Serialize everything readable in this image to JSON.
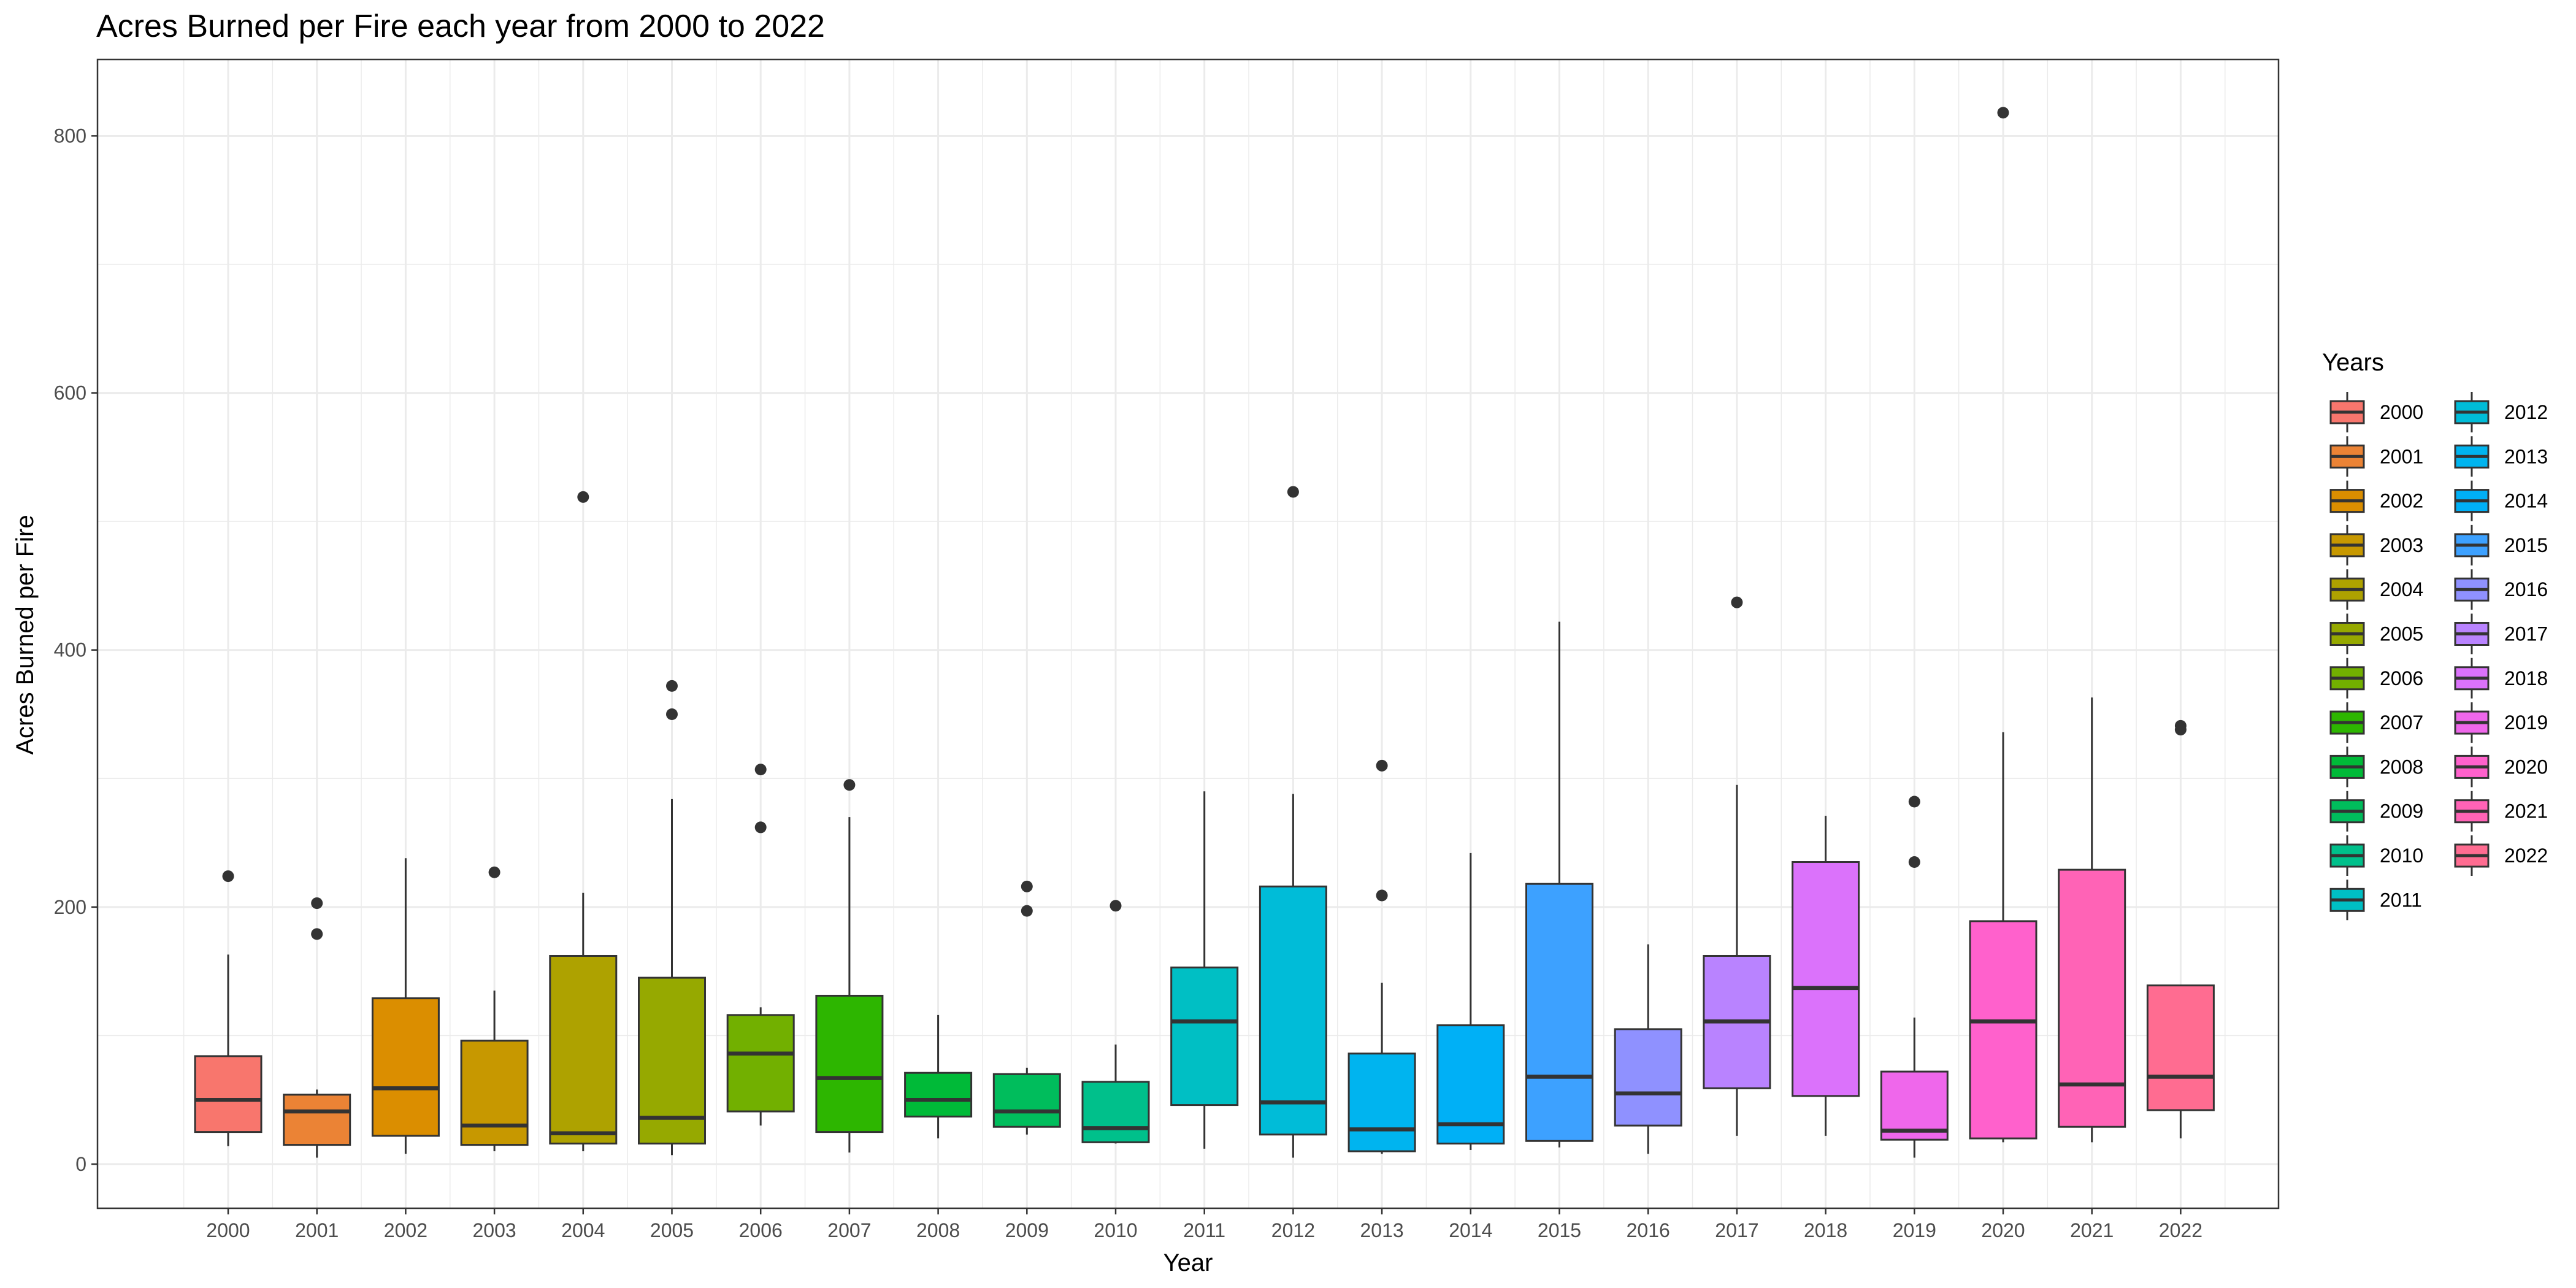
{
  "chart_data": {
    "type": "boxplot",
    "title": "Acres Burned per Fire each year from 2000 to 2022",
    "xlabel": "Year",
    "ylabel": "Acres Burned per Fire",
    "ylim": [
      -32,
      860
    ],
    "yticks": [
      0,
      200,
      400,
      600,
      800
    ],
    "grid": true,
    "legend": {
      "title": "Years",
      "placement": "right",
      "columns": 2
    },
    "categories": [
      "2000",
      "2001",
      "2002",
      "2003",
      "2004",
      "2005",
      "2006",
      "2007",
      "2008",
      "2009",
      "2010",
      "2011",
      "2012",
      "2013",
      "2014",
      "2015",
      "2016",
      "2017",
      "2018",
      "2019",
      "2020",
      "2021",
      "2022"
    ],
    "boxes": [
      {
        "year": "2000",
        "color": "#F8766D",
        "low": 14,
        "q1": 25,
        "median": 50,
        "q3": 84,
        "high": 163,
        "outliers": [
          224
        ]
      },
      {
        "year": "2001",
        "color": "#EB8335",
        "low": 5,
        "q1": 15,
        "median": 41,
        "q3": 54,
        "high": 58,
        "outliers": [
          203,
          179
        ]
      },
      {
        "year": "2002",
        "color": "#DB8E00",
        "low": 8,
        "q1": 22,
        "median": 59,
        "q3": 129,
        "high": 238,
        "outliers": []
      },
      {
        "year": "2003",
        "color": "#C79800",
        "low": 10,
        "q1": 15,
        "median": 30,
        "q3": 96,
        "high": 135,
        "outliers": [
          227
        ]
      },
      {
        "year": "2004",
        "color": "#AEA200",
        "low": 10,
        "q1": 16,
        "median": 24,
        "q3": 162,
        "high": 211,
        "outliers": [
          519
        ]
      },
      {
        "year": "2005",
        "color": "#96A900",
        "low": 7,
        "q1": 16,
        "median": 36,
        "q3": 145,
        "high": 284,
        "outliers": [
          372,
          350
        ]
      },
      {
        "year": "2006",
        "color": "#72B000",
        "low": 30,
        "q1": 41,
        "median": 86,
        "q3": 116,
        "high": 122,
        "outliers": [
          307,
          262
        ]
      },
      {
        "year": "2007",
        "color": "#2DB600",
        "low": 9,
        "q1": 25,
        "median": 67,
        "q3": 131,
        "high": 270,
        "outliers": [
          295
        ]
      },
      {
        "year": "2008",
        "color": "#00BA38",
        "low": 20,
        "q1": 37,
        "median": 50,
        "q3": 71,
        "high": 116,
        "outliers": []
      },
      {
        "year": "2009",
        "color": "#00BD5C",
        "low": 23,
        "q1": 29,
        "median": 41,
        "q3": 70,
        "high": 75,
        "outliers": [
          216,
          197
        ]
      },
      {
        "year": "2010",
        "color": "#00C08B",
        "low": 16,
        "q1": 17,
        "median": 28,
        "q3": 64,
        "high": 93,
        "outliers": [
          201
        ]
      },
      {
        "year": "2011",
        "color": "#00BFC4",
        "low": 12,
        "q1": 46,
        "median": 111,
        "q3": 153,
        "high": 290,
        "outliers": []
      },
      {
        "year": "2012",
        "color": "#00BCD8",
        "low": 5,
        "q1": 23,
        "median": 48,
        "q3": 216,
        "high": 288,
        "outliers": [
          523
        ]
      },
      {
        "year": "2013",
        "color": "#00B4EF",
        "low": 8,
        "q1": 10,
        "median": 27,
        "q3": 86,
        "high": 141,
        "outliers": [
          310,
          209
        ]
      },
      {
        "year": "2014",
        "color": "#00B0F6",
        "low": 11,
        "q1": 16,
        "median": 31,
        "q3": 108,
        "high": 242,
        "outliers": []
      },
      {
        "year": "2015",
        "color": "#3DA1FF",
        "low": 13,
        "q1": 18,
        "median": 68,
        "q3": 218,
        "high": 422,
        "outliers": []
      },
      {
        "year": "2016",
        "color": "#8F91FF",
        "low": 8,
        "q1": 30,
        "median": 55,
        "q3": 105,
        "high": 171,
        "outliers": []
      },
      {
        "year": "2017",
        "color": "#B983FF",
        "low": 22,
        "q1": 59,
        "median": 111,
        "q3": 162,
        "high": 295,
        "outliers": [
          437
        ]
      },
      {
        "year": "2018",
        "color": "#DB72FB",
        "low": 22,
        "q1": 53,
        "median": 137,
        "q3": 235,
        "high": 271,
        "outliers": []
      },
      {
        "year": "2019",
        "color": "#EF67EB",
        "low": 5,
        "q1": 19,
        "median": 26,
        "q3": 72,
        "high": 114,
        "outliers": [
          282,
          235
        ]
      },
      {
        "year": "2020",
        "color": "#FF61CC",
        "low": 17,
        "q1": 20,
        "median": 111,
        "q3": 189,
        "high": 336,
        "outliers": [
          818
        ]
      },
      {
        "year": "2021",
        "color": "#FF63B6",
        "low": 17,
        "q1": 29,
        "median": 62,
        "q3": 229,
        "high": 363,
        "outliers": []
      },
      {
        "year": "2022",
        "color": "#FF6C91",
        "low": 20,
        "q1": 42,
        "median": 68,
        "q3": 139,
        "high": 139,
        "outliers": [
          341,
          338
        ]
      }
    ]
  }
}
